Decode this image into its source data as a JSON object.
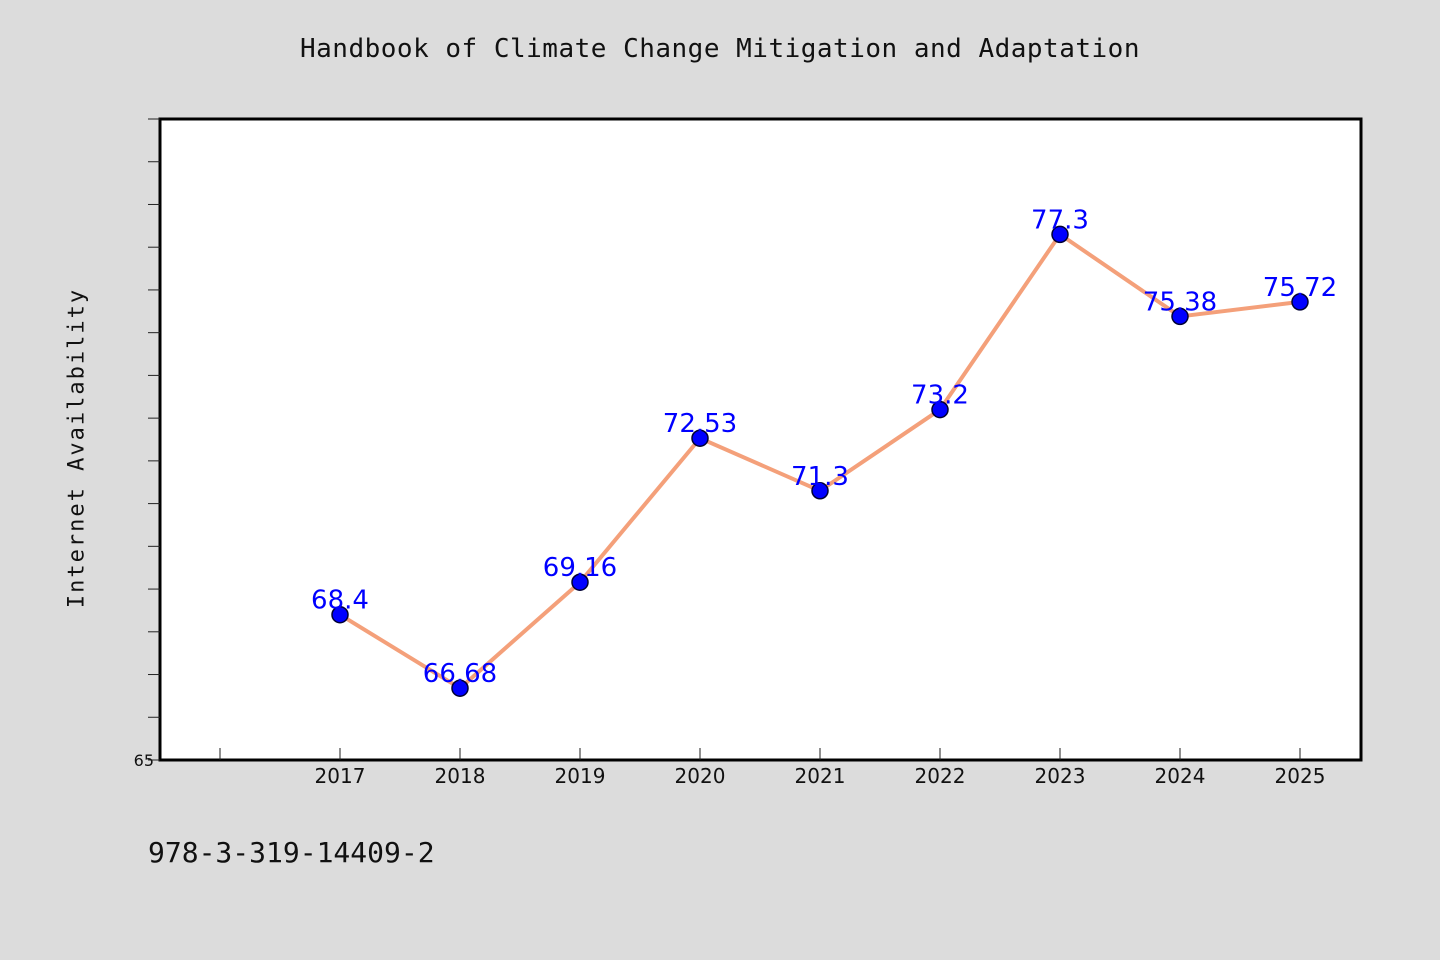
{
  "chart_data": {
    "type": "line",
    "title": "Handbook of Climate Change Mitigation and Adaptation",
    "ylabel": "Internet Availability",
    "xlabel": "",
    "categories": [
      "2017",
      "2018",
      "2019",
      "2020",
      "2021",
      "2022",
      "2023",
      "2024",
      "2025"
    ],
    "series": [
      {
        "values": [
          68.4,
          66.68,
          69.16,
          72.53,
          71.3,
          73.2,
          77.3,
          75.38,
          75.72
        ],
        "data_labels": [
          "68.4",
          "66.68",
          "69.16",
          "72.53",
          "71.3",
          "73.2",
          "77.3",
          "75.38",
          "75.72"
        ]
      }
    ],
    "ylim": [
      65,
      80
    ],
    "ytick_labels": [
      "65"
    ],
    "grid": false,
    "colors": {
      "line": "#f4a07a",
      "marker": "#0000ff",
      "marker_edge": "#000033",
      "label": "#0000ff",
      "background": "#dcdcdc",
      "plot_background": "#ffffff"
    }
  },
  "footer": {
    "id_text": "978-3-319-14409-2"
  }
}
